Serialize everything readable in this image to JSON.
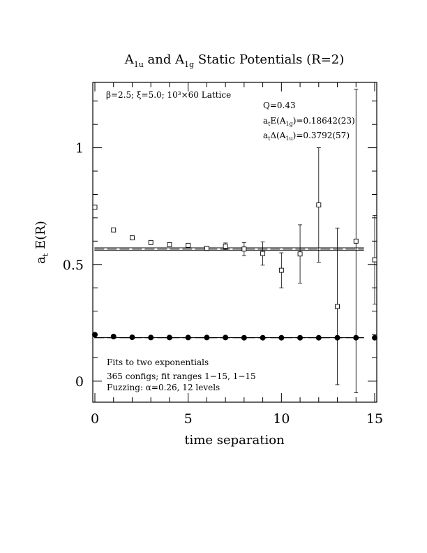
{
  "chart_data": {
    "type": "scatter",
    "title": {
      "main_a": "A",
      "sub_a": "1u",
      "and": " and A",
      "sub_b": "1g",
      "rest": " Static Potentials (R=2)"
    },
    "xlabel": "time separation",
    "ylabel": {
      "main": "a",
      "sub": "t",
      "rest": " E(R)"
    },
    "xlim": [
      0,
      15
    ],
    "ylim": [
      -0.09,
      1.28
    ],
    "x_ticks": [
      {
        "value": 0,
        "label": "0"
      },
      {
        "value": 5,
        "label": "5"
      },
      {
        "value": 10,
        "label": "10"
      },
      {
        "value": 15,
        "label": "15"
      }
    ],
    "y_ticks": [
      {
        "value": 0,
        "label": "0"
      },
      {
        "value": 0.5,
        "label": "0.5"
      },
      {
        "value": 1,
        "label": "1"
      }
    ],
    "annotations": {
      "lattice": "β=2.5; ξ=5.0; 10³×60 Lattice",
      "q": "Q=0.43",
      "e_a1g": {
        "pre": "a",
        "sub1": "t",
        "mid": "E(A",
        "sub2": "1g",
        "post": ")=0.18642(23)"
      },
      "delta_a1u": {
        "pre": "a",
        "sub1": "t",
        "mid": "Δ(A",
        "sub2": "1u",
        "post": ")=0.3792(57)"
      },
      "fits": "Fits to two exponentials",
      "configs": "365 configs; fit ranges 1−15, 1−15",
      "fuzzing": "Fuzzing: α=0.26, 12 levels"
    },
    "series": [
      {
        "marker": "open-square",
        "fit_value": 0.5656,
        "fit_band": [
          0.56,
          0.5712
        ],
        "fit_range": [
          0.5,
          14.5
        ],
        "points": [
          {
            "x": 0,
            "y": 0.745,
            "err": 0
          },
          {
            "x": 1,
            "y": 0.648,
            "err": 0
          },
          {
            "x": 2,
            "y": 0.614,
            "err": 0
          },
          {
            "x": 3,
            "y": 0.594,
            "err": 0.005
          },
          {
            "x": 4,
            "y": 0.585,
            "err": 0.007
          },
          {
            "x": 5,
            "y": 0.582,
            "err": 0.007
          },
          {
            "x": 6,
            "y": 0.569,
            "err": 0.009
          },
          {
            "x": 7,
            "y": 0.578,
            "err": 0.014
          },
          {
            "x": 8,
            "y": 0.566,
            "err": 0.028
          },
          {
            "x": 9,
            "y": 0.547,
            "err": 0.05
          },
          {
            "x": 10,
            "y": 0.475,
            "err": 0.075
          },
          {
            "x": 11,
            "y": 0.545,
            "err": 0.125
          },
          {
            "x": 12,
            "y": 0.755,
            "err": 0.245
          },
          {
            "x": 13,
            "y": 0.32,
            "err": 0.335
          },
          {
            "x": 14,
            "y": 0.6,
            "err": 0.65
          },
          {
            "x": 15,
            "y": 0.52,
            "err": 0.19
          }
        ]
      },
      {
        "marker": "filled-circle",
        "fit_value": 0.18642,
        "fit_band": [
          0.18619,
          0.18665
        ],
        "fit_range": [
          0.5,
          14.5
        ],
        "points": [
          {
            "x": 0,
            "y": 0.199,
            "err": 0
          },
          {
            "x": 1,
            "y": 0.191,
            "err": 0
          },
          {
            "x": 2,
            "y": 0.188,
            "err": 0
          },
          {
            "x": 3,
            "y": 0.187,
            "err": 0
          },
          {
            "x": 4,
            "y": 0.187,
            "err": 0
          },
          {
            "x": 5,
            "y": 0.187,
            "err": 0
          },
          {
            "x": 6,
            "y": 0.187,
            "err": 0
          },
          {
            "x": 7,
            "y": 0.187,
            "err": 0
          },
          {
            "x": 8,
            "y": 0.186,
            "err": 0
          },
          {
            "x": 9,
            "y": 0.186,
            "err": 0
          },
          {
            "x": 10,
            "y": 0.186,
            "err": 0
          },
          {
            "x": 11,
            "y": 0.186,
            "err": 0
          },
          {
            "x": 12,
            "y": 0.186,
            "err": 0
          },
          {
            "x": 13,
            "y": 0.186,
            "err": 0
          },
          {
            "x": 14,
            "y": 0.186,
            "err": 0
          },
          {
            "x": 15,
            "y": 0.186,
            "err": 0
          }
        ]
      }
    ]
  }
}
